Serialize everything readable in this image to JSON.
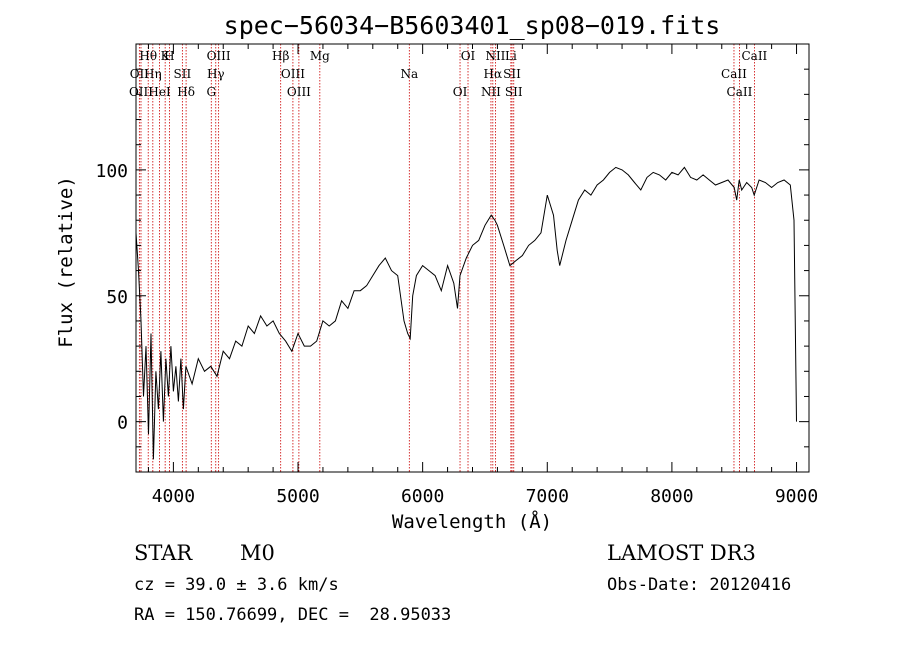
{
  "chart_data": {
    "type": "line",
    "title": "spec−56034−B5603401_sp08−019.fits",
    "xlabel": "Wavelength (Å)",
    "ylabel": "Flux (relative)",
    "xlim": [
      3700,
      9100
    ],
    "ylim": [
      -20,
      150
    ],
    "x_ticks": [
      4000,
      5000,
      6000,
      7000,
      8000,
      9000
    ],
    "y_ticks": [
      0,
      50,
      100
    ],
    "grid": false,
    "line_color": "#000000",
    "marker_color": "#cc0000",
    "series": [
      {
        "x": [
          3700,
          3720,
          3740,
          3760,
          3780,
          3800,
          3820,
          3840,
          3860,
          3880,
          3900,
          3920,
          3940,
          3960,
          3980,
          4000,
          4020,
          4040,
          4060,
          4080,
          4100,
          4150,
          4200,
          4250,
          4300,
          4350,
          4400,
          4450,
          4500,
          4550,
          4600,
          4650,
          4700,
          4750,
          4800,
          4850,
          4900,
          4950,
          5000,
          5050,
          5100,
          5150,
          5200,
          5250,
          5300,
          5350,
          5400,
          5450,
          5500,
          5550,
          5600,
          5650,
          5700,
          5750,
          5800,
          5850,
          5880,
          5900,
          5920,
          5950,
          6000,
          6050,
          6100,
          6150,
          6200,
          6250,
          6280,
          6300,
          6350,
          6400,
          6450,
          6500,
          6550,
          6580,
          6600,
          6650,
          6700,
          6750,
          6800,
          6850,
          6900,
          6950,
          7000,
          7050,
          7080,
          7100,
          7150,
          7200,
          7250,
          7300,
          7350,
          7400,
          7450,
          7500,
          7550,
          7600,
          7650,
          7700,
          7750,
          7800,
          7850,
          7900,
          7950,
          8000,
          8050,
          8100,
          8150,
          8200,
          8250,
          8300,
          8350,
          8400,
          8450,
          8500,
          8520,
          8540,
          8560,
          8600,
          8640,
          8660,
          8700,
          8750,
          8800,
          8850,
          8900,
          8950,
          8980,
          9000
        ],
        "y": [
          75,
          60,
          40,
          10,
          30,
          -5,
          35,
          -15,
          20,
          5,
          28,
          0,
          25,
          10,
          30,
          12,
          22,
          8,
          25,
          5,
          22,
          15,
          25,
          20,
          22,
          18,
          28,
          25,
          32,
          30,
          38,
          35,
          42,
          38,
          40,
          35,
          32,
          28,
          35,
          30,
          30,
          32,
          40,
          38,
          40,
          48,
          45,
          52,
          52,
          54,
          58,
          62,
          65,
          60,
          58,
          40,
          35,
          33,
          50,
          58,
          62,
          60,
          58,
          52,
          62,
          55,
          45,
          58,
          65,
          70,
          72,
          78,
          82,
          80,
          78,
          70,
          62,
          64,
          66,
          70,
          72,
          75,
          90,
          82,
          68,
          62,
          72,
          80,
          88,
          92,
          90,
          94,
          96,
          99,
          101,
          100,
          98,
          95,
          92,
          97,
          99,
          98,
          96,
          99,
          98,
          101,
          97,
          96,
          98,
          96,
          94,
          95,
          96,
          93,
          88,
          96,
          92,
          95,
          93,
          90,
          96,
          95,
          93,
          95,
          96,
          94,
          80,
          0
        ]
      }
    ],
    "spectral_lines": [
      {
        "label": "Hθ",
        "wavelength": 3798
      },
      {
        "label": "OII",
        "wavelength": 3727
      },
      {
        "label": "OIII",
        "wavelength": 3740
      },
      {
        "label": "K",
        "wavelength": 3934
      },
      {
        "label": "Hη",
        "wavelength": 3835
      },
      {
        "label": "HeI",
        "wavelength": 3889
      },
      {
        "label": "H",
        "wavelength": 3968
      },
      {
        "label": "SII",
        "wavelength": 4072
      },
      {
        "label": "Hδ",
        "wavelength": 4102
      },
      {
        "label": "OIII",
        "wavelength": 4363
      },
      {
        "label": "Hγ",
        "wavelength": 4340
      },
      {
        "label": "G",
        "wavelength": 4304
      },
      {
        "label": "Hβ",
        "wavelength": 4861
      },
      {
        "label": "OIII",
        "wavelength": 4959
      },
      {
        "label": "OIII",
        "wavelength": 5007
      },
      {
        "label": "Mg",
        "wavelength": 5175
      },
      {
        "label": "Na",
        "wavelength": 5893
      },
      {
        "label": "OI",
        "wavelength": 6300
      },
      {
        "label": "OI",
        "wavelength": 6364
      },
      {
        "label": "Hα",
        "wavelength": 6563
      },
      {
        "label": "NII",
        "wavelength": 6548
      },
      {
        "label": "NII",
        "wavelength": 6584
      },
      {
        "label": "SII",
        "wavelength": 6717
      },
      {
        "label": "SII",
        "wavelength": 6731
      },
      {
        "label": "Li",
        "wavelength": 6708
      },
      {
        "label": "CaII",
        "wavelength": 8498
      },
      {
        "label": "CaII",
        "wavelength": 8542
      },
      {
        "label": "CaII",
        "wavelength": 8662
      }
    ]
  },
  "info": {
    "object_class": "STAR",
    "subclass": "M0",
    "survey": "LAMOST DR3",
    "redshift": "cz = 39.0 ± 3.6 km/s",
    "obs_date": "Obs-Date: 20120416",
    "coords": "RA = 150.76699, DEC =  28.95033"
  }
}
